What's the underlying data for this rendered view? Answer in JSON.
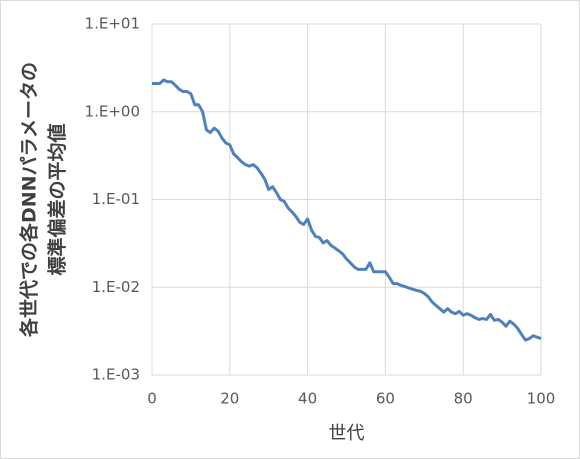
{
  "chart_data": {
    "type": "line",
    "ylabel": [
      "各世代での各DNNパラメータの",
      "標準偏差の平均値"
    ],
    "xlabel": "世代",
    "x": [
      0,
      1,
      2,
      3,
      4,
      5,
      6,
      7,
      8,
      9,
      10,
      11,
      12,
      13,
      14,
      15,
      16,
      17,
      18,
      19,
      20,
      21,
      22,
      23,
      24,
      25,
      26,
      27,
      28,
      29,
      30,
      31,
      32,
      33,
      34,
      35,
      36,
      37,
      38,
      39,
      40,
      41,
      42,
      43,
      44,
      45,
      46,
      47,
      48,
      49,
      50,
      51,
      52,
      53,
      54,
      55,
      56,
      57,
      58,
      59,
      60,
      61,
      62,
      63,
      64,
      65,
      66,
      67,
      68,
      69,
      70,
      71,
      72,
      73,
      74,
      75,
      76,
      77,
      78,
      79,
      80,
      81,
      82,
      83,
      84,
      85,
      86,
      87,
      88,
      89,
      90,
      91,
      92,
      93,
      94,
      95,
      96,
      97,
      98,
      99,
      100
    ],
    "values": [
      2.1,
      2.1,
      2.1,
      2.3,
      2.2,
      2.2,
      2.0,
      1.8,
      1.7,
      1.7,
      1.6,
      1.2,
      1.2,
      1.0,
      0.62,
      0.58,
      0.65,
      0.6,
      0.5,
      0.44,
      0.42,
      0.33,
      0.3,
      0.27,
      0.25,
      0.24,
      0.25,
      0.23,
      0.2,
      0.17,
      0.13,
      0.14,
      0.12,
      0.1,
      0.095,
      0.08,
      0.072,
      0.064,
      0.055,
      0.052,
      0.06,
      0.045,
      0.038,
      0.037,
      0.032,
      0.034,
      0.03,
      0.028,
      0.026,
      0.024,
      0.021,
      0.019,
      0.017,
      0.016,
      0.016,
      0.016,
      0.019,
      0.015,
      0.015,
      0.015,
      0.015,
      0.013,
      0.011,
      0.011,
      0.0105,
      0.0102,
      0.0098,
      0.0095,
      0.0092,
      0.009,
      0.0085,
      0.0078,
      0.0068,
      0.0062,
      0.0057,
      0.0052,
      0.0057,
      0.0052,
      0.005,
      0.0053,
      0.0048,
      0.005,
      0.0048,
      0.0045,
      0.0043,
      0.0044,
      0.0043,
      0.0049,
      0.0042,
      0.0043,
      0.004,
      0.0036,
      0.0041,
      0.0038,
      0.0034,
      0.0029,
      0.0025,
      0.0026,
      0.0028,
      0.0027,
      0.0026
    ],
    "color": "#4f81bd",
    "xlim": [
      0,
      100
    ],
    "xticks": [
      0,
      20,
      40,
      60,
      80,
      100
    ],
    "ylim": [
      0.001,
      10
    ],
    "ylog": true,
    "yticks": [
      {
        "value": 10,
        "label": "1.E+01"
      },
      {
        "value": 1,
        "label": "1.E+00"
      },
      {
        "value": 0.1,
        "label": "1.E-01"
      },
      {
        "value": 0.01,
        "label": "1.E-02"
      },
      {
        "value": 0.001,
        "label": "1.E-03"
      }
    ],
    "grid": true
  }
}
